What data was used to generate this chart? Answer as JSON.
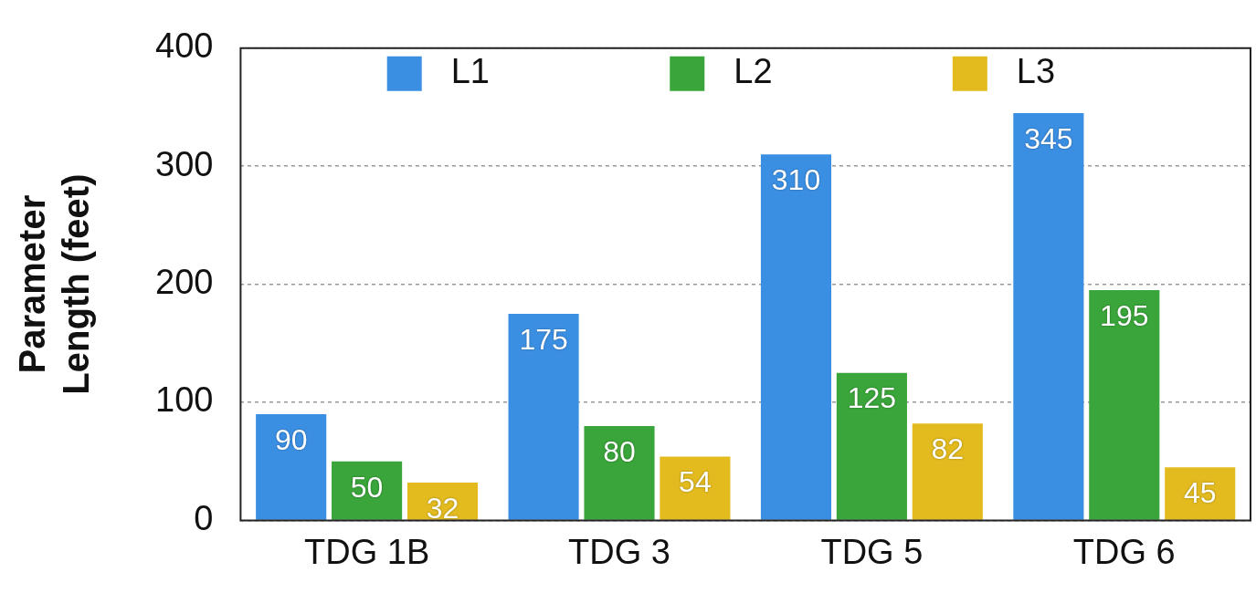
{
  "chart_data": {
    "type": "bar",
    "ylabel": "Parameter\nLength (feet)",
    "categories": [
      "TDG 1B",
      "TDG 3",
      "TDG 5",
      "TDG 6"
    ],
    "series": [
      {
        "name": "L1",
        "color": "#3b8fe3",
        "values": [
          90,
          175,
          310,
          345
        ]
      },
      {
        "name": "L2",
        "color": "#3aa53a",
        "values": [
          50,
          80,
          125,
          195
        ]
      },
      {
        "name": "L3",
        "color": "#e3bb1f",
        "values": [
          32,
          54,
          82,
          45
        ]
      }
    ],
    "ylim": [
      0,
      400
    ],
    "yticks": [
      0,
      100,
      200,
      300,
      400
    ],
    "grid": "y",
    "legend": "top",
    "data_labels": true
  }
}
